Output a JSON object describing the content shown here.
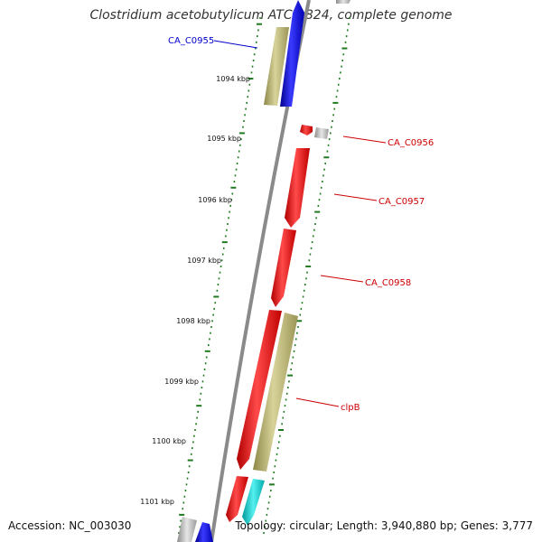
{
  "title": "Clostridium acetobutylicum ATCC 824, complete genome",
  "footer": {
    "accession": "Accession: NC_003030",
    "topology": "Topology: circular; Length: 3,940,880 bp; Genes: 3,777"
  },
  "colors": {
    "backbone": "#8a8a8a",
    "tick": "#1f7a1f",
    "forward_label": "#0000cc",
    "reverse_label": "#cc0000",
    "gene_red": "#ff0000",
    "gene_blue": "#0000ff",
    "gene_khaki": "#bdb76b",
    "gene_grey": "#aaaaaa",
    "gene_cyan": "#00cccc"
  },
  "scale_labels": [
    "1094 kbp",
    "1095 kbp",
    "1096 kbp",
    "1097 kbp",
    "1098 kbp",
    "1099 kbp",
    "1100 kbp",
    "1101 kbp"
  ],
  "gene_labels": [
    {
      "text": "CA_C0955",
      "strand": "forward"
    },
    {
      "text": "CA_C0956",
      "strand": "reverse"
    },
    {
      "text": "CA_C0957",
      "strand": "reverse"
    },
    {
      "text": "CA_C0958",
      "strand": "reverse"
    },
    {
      "text": "clpB",
      "strand": "reverse"
    }
  ]
}
